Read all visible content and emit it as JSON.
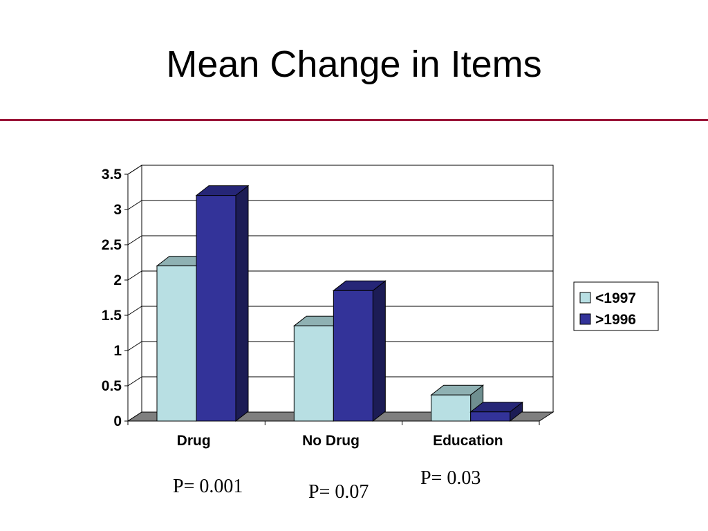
{
  "title": "Mean Change in Items",
  "colors": {
    "title_rule": "#9a1538",
    "series_light": "#b8dfe3",
    "series_light_top": "#8fb1b3",
    "series_light_side": "#6f8f90",
    "series_dark": "#333399",
    "series_dark_top": "#262677",
    "series_dark_side": "#1c1c55",
    "floor": "#7f7f7f"
  },
  "chart_data": {
    "type": "bar",
    "categories": [
      "Drug",
      "No Drug",
      "Education"
    ],
    "series": [
      {
        "name": "<1997",
        "values": [
          2.2,
          1.35,
          0.37
        ]
      },
      {
        "name": ">1996",
        "values": [
          3.2,
          1.85,
          0.13
        ]
      }
    ],
    "ylim": [
      0,
      3.5
    ],
    "yticks": [
      "0",
      "0.5",
      "1",
      "1.5",
      "2",
      "2.5",
      "3",
      "3.5"
    ],
    "grid": true,
    "legend": "right",
    "style": "3d-column"
  },
  "annotations": {
    "p_drug": "P= 0.001",
    "p_nodrug": "P= 0.07",
    "p_education": "P= 0.03"
  }
}
